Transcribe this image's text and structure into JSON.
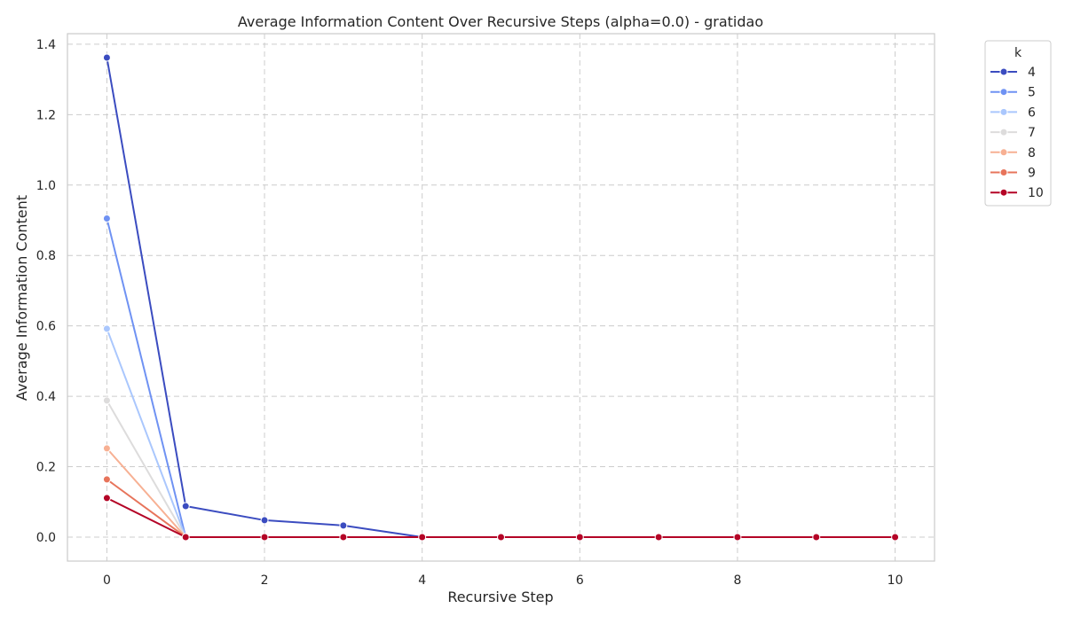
{
  "chart_data": {
    "type": "line",
    "title": "Average Information Content Over Recursive Steps (alpha=0.0) - gratidao",
    "xlabel": "Recursive Step",
    "ylabel": "Average Information Content",
    "xlim": [
      -0.5,
      10.5
    ],
    "ylim": [
      -0.068,
      1.43
    ],
    "x_ticks": [
      0,
      2,
      4,
      6,
      8,
      10
    ],
    "y_ticks": [
      0.0,
      0.2,
      0.4,
      0.6,
      0.8,
      1.0,
      1.2,
      1.4
    ],
    "x_tick_labels": [
      "0",
      "2",
      "4",
      "6",
      "8",
      "10"
    ],
    "y_tick_labels": [
      "0.0",
      "0.2",
      "0.4",
      "0.6",
      "0.8",
      "1.0",
      "1.2",
      "1.4"
    ],
    "grid": true,
    "legend": {
      "title": "k",
      "placement": "outside-top-right"
    },
    "series": [
      {
        "name": "4",
        "color": "#3b4cc0",
        "x": [
          0,
          1,
          2,
          3,
          4,
          5,
          6,
          7,
          8,
          9,
          10
        ],
        "y": [
          1.362,
          0.088,
          0.048,
          0.033,
          0,
          0,
          0,
          0,
          0,
          0,
          0
        ]
      },
      {
        "name": "5",
        "color": "#6f92f3",
        "x": [
          0,
          1
        ],
        "y": [
          0.905,
          0
        ]
      },
      {
        "name": "6",
        "color": "#aac7fd",
        "x": [
          0,
          1
        ],
        "y": [
          0.592,
          0
        ]
      },
      {
        "name": "7",
        "color": "#dddcdc",
        "x": [
          0,
          1
        ],
        "y": [
          0.388,
          0
        ]
      },
      {
        "name": "8",
        "color": "#f7b093",
        "x": [
          0,
          1
        ],
        "y": [
          0.252,
          0
        ]
      },
      {
        "name": "9",
        "color": "#e7745b",
        "x": [
          0,
          1
        ],
        "y": [
          0.164,
          0
        ]
      },
      {
        "name": "10",
        "color": "#b40426",
        "x": [
          0,
          1,
          2,
          3,
          4,
          5,
          6,
          7,
          8,
          9,
          10
        ],
        "y": [
          0.111,
          0,
          0,
          0,
          0,
          0,
          0,
          0,
          0,
          0,
          0
        ]
      }
    ]
  }
}
